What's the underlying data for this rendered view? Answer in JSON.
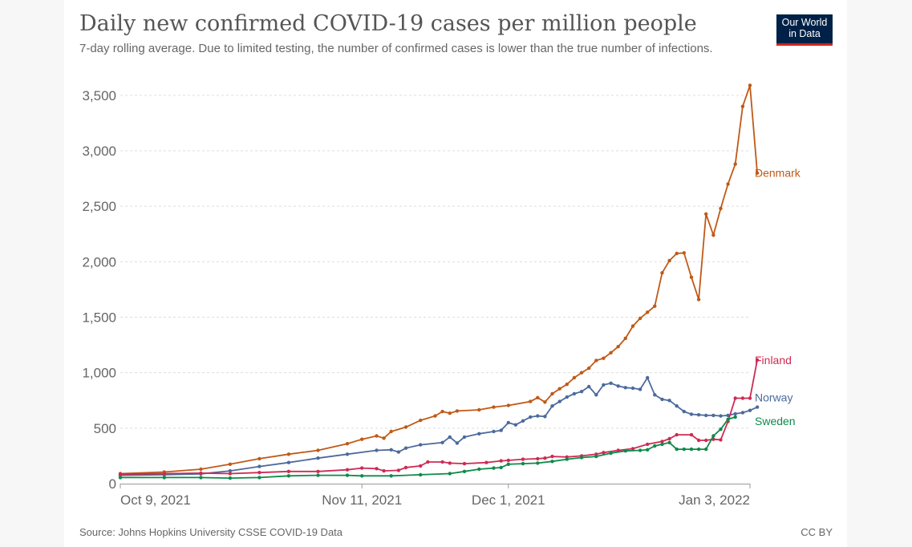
{
  "header": {
    "title": "Daily new confirmed COVID-19 cases per million people",
    "subtitle": "7-day rolling average. Due to limited testing, the number of confirmed cases is lower than the true number of infections.",
    "logo_line1": "Our World",
    "logo_line2": "in Data"
  },
  "footer": {
    "source": "Source: Johns Hopkins University CSSE COVID-19 Data",
    "license": "CC BY"
  },
  "chart_data": {
    "type": "line",
    "title": "Daily new confirmed COVID-19 cases per million people",
    "subtitle": "7-day rolling average. Due to limited testing, the number of confirmed cases is lower than the true number of infections.",
    "xlabel": "",
    "ylabel": "",
    "x_start": "2021-10-09",
    "x_end": "2022-01-03",
    "x_ticks": [
      {
        "date": "2021-10-09",
        "label": "Oct 9, 2021"
      },
      {
        "date": "2021-11-11",
        "label": "Nov 11, 2021"
      },
      {
        "date": "2021-12-01",
        "label": "Dec 1, 2021"
      },
      {
        "date": "2022-01-03",
        "label": "Jan 3, 2022"
      }
    ],
    "ylim": [
      0,
      3600
    ],
    "y_ticks": [
      {
        "value": 0,
        "label": "0"
      },
      {
        "value": 500,
        "label": "500"
      },
      {
        "value": 1000,
        "label": "1,000"
      },
      {
        "value": 1500,
        "label": "1,500"
      },
      {
        "value": 2000,
        "label": "2,000"
      },
      {
        "value": 2500,
        "label": "2,500"
      },
      {
        "value": 3000,
        "label": "3,000"
      },
      {
        "value": 3500,
        "label": "3,500"
      }
    ],
    "grid": "horizontal dashed",
    "legend": "labels at line ends (right)",
    "series": [
      {
        "name": "Denmark",
        "color": "#c05917",
        "points": [
          [
            "2021-10-09",
            90
          ],
          [
            "2021-10-15",
            105
          ],
          [
            "2021-10-20",
            130
          ],
          [
            "2021-10-24",
            175
          ],
          [
            "2021-10-28",
            225
          ],
          [
            "2021-11-01",
            265
          ],
          [
            "2021-11-05",
            300
          ],
          [
            "2021-11-09",
            360
          ],
          [
            "2021-11-11",
            400
          ],
          [
            "2021-11-13",
            430
          ],
          [
            "2021-11-14",
            410
          ],
          [
            "2021-11-15",
            470
          ],
          [
            "2021-11-17",
            510
          ],
          [
            "2021-11-19",
            570
          ],
          [
            "2021-11-21",
            610
          ],
          [
            "2021-11-22",
            650
          ],
          [
            "2021-11-23",
            635
          ],
          [
            "2021-11-24",
            655
          ],
          [
            "2021-11-27",
            665
          ],
          [
            "2021-11-29",
            690
          ],
          [
            "2021-12-01",
            705
          ],
          [
            "2021-12-04",
            740
          ],
          [
            "2021-12-05",
            775
          ],
          [
            "2021-12-06",
            735
          ],
          [
            "2021-12-07",
            810
          ],
          [
            "2021-12-08",
            855
          ],
          [
            "2021-12-09",
            895
          ],
          [
            "2021-12-10",
            955
          ],
          [
            "2021-12-11",
            1000
          ],
          [
            "2021-12-12",
            1040
          ],
          [
            "2021-12-13",
            1110
          ],
          [
            "2021-12-14",
            1130
          ],
          [
            "2021-12-15",
            1180
          ],
          [
            "2021-12-16",
            1235
          ],
          [
            "2021-12-17",
            1310
          ],
          [
            "2021-12-18",
            1420
          ],
          [
            "2021-12-19",
            1490
          ],
          [
            "2021-12-20",
            1545
          ],
          [
            "2021-12-21",
            1600
          ],
          [
            "2021-12-22",
            1900
          ],
          [
            "2021-12-23",
            2010
          ],
          [
            "2021-12-24",
            2075
          ],
          [
            "2021-12-25",
            2080
          ],
          [
            "2021-12-26",
            1860
          ],
          [
            "2021-12-27",
            1660
          ],
          [
            "2021-12-28",
            2430
          ],
          [
            "2021-12-29",
            2240
          ],
          [
            "2021-12-30",
            2480
          ],
          [
            "2021-12-31",
            2700
          ],
          [
            "2022-01-01",
            2880
          ],
          [
            "2022-01-02",
            3400
          ],
          [
            "2022-01-03",
            3590
          ],
          [
            "2022-01-04",
            2800
          ]
        ]
      },
      {
        "name": "Norway",
        "color": "#4c6a9c",
        "points": [
          [
            "2021-10-09",
            75
          ],
          [
            "2021-10-15",
            80
          ],
          [
            "2021-10-20",
            88
          ],
          [
            "2021-10-24",
            115
          ],
          [
            "2021-10-28",
            155
          ],
          [
            "2021-11-01",
            190
          ],
          [
            "2021-11-05",
            230
          ],
          [
            "2021-11-09",
            265
          ],
          [
            "2021-11-13",
            300
          ],
          [
            "2021-11-15",
            305
          ],
          [
            "2021-11-16",
            285
          ],
          [
            "2021-11-17",
            320
          ],
          [
            "2021-11-19",
            350
          ],
          [
            "2021-11-22",
            370
          ],
          [
            "2021-11-23",
            420
          ],
          [
            "2021-11-24",
            365
          ],
          [
            "2021-11-25",
            420
          ],
          [
            "2021-11-27",
            450
          ],
          [
            "2021-11-29",
            470
          ],
          [
            "2021-11-30",
            480
          ],
          [
            "2021-12-01",
            550
          ],
          [
            "2021-12-02",
            530
          ],
          [
            "2021-12-03",
            565
          ],
          [
            "2021-12-04",
            600
          ],
          [
            "2021-12-05",
            610
          ],
          [
            "2021-12-06",
            605
          ],
          [
            "2021-12-07",
            700
          ],
          [
            "2021-12-08",
            740
          ],
          [
            "2021-12-09",
            780
          ],
          [
            "2021-12-10",
            810
          ],
          [
            "2021-12-11",
            830
          ],
          [
            "2021-12-12",
            875
          ],
          [
            "2021-12-13",
            800
          ],
          [
            "2021-12-14",
            890
          ],
          [
            "2021-12-15",
            905
          ],
          [
            "2021-12-16",
            880
          ],
          [
            "2021-12-17",
            865
          ],
          [
            "2021-12-18",
            860
          ],
          [
            "2021-12-19",
            850
          ],
          [
            "2021-12-20",
            955
          ],
          [
            "2021-12-21",
            800
          ],
          [
            "2021-12-22",
            760
          ],
          [
            "2021-12-23",
            750
          ],
          [
            "2021-12-24",
            700
          ],
          [
            "2021-12-25",
            650
          ],
          [
            "2021-12-26",
            625
          ],
          [
            "2021-12-27",
            620
          ],
          [
            "2021-12-28",
            615
          ],
          [
            "2021-12-29",
            615
          ],
          [
            "2021-12-30",
            610
          ],
          [
            "2021-12-31",
            615
          ],
          [
            "2022-01-01",
            630
          ],
          [
            "2022-01-02",
            640
          ],
          [
            "2022-01-03",
            660
          ],
          [
            "2022-01-04",
            690
          ]
        ]
      },
      {
        "name": "Finland",
        "color": "#cf2a54",
        "points": [
          [
            "2021-10-09",
            85
          ],
          [
            "2021-10-15",
            90
          ],
          [
            "2021-10-20",
            95
          ],
          [
            "2021-10-24",
            90
          ],
          [
            "2021-10-28",
            100
          ],
          [
            "2021-11-01",
            110
          ],
          [
            "2021-11-05",
            110
          ],
          [
            "2021-11-09",
            125
          ],
          [
            "2021-11-11",
            140
          ],
          [
            "2021-11-13",
            135
          ],
          [
            "2021-11-14",
            115
          ],
          [
            "2021-11-16",
            120
          ],
          [
            "2021-11-17",
            145
          ],
          [
            "2021-11-19",
            160
          ],
          [
            "2021-11-20",
            195
          ],
          [
            "2021-11-22",
            195
          ],
          [
            "2021-11-23",
            185
          ],
          [
            "2021-11-25",
            180
          ],
          [
            "2021-11-28",
            190
          ],
          [
            "2021-11-30",
            205
          ],
          [
            "2021-12-01",
            210
          ],
          [
            "2021-12-03",
            220
          ],
          [
            "2021-12-05",
            225
          ],
          [
            "2021-12-06",
            230
          ],
          [
            "2021-12-07",
            245
          ],
          [
            "2021-12-09",
            240
          ],
          [
            "2021-12-11",
            250
          ],
          [
            "2021-12-13",
            265
          ],
          [
            "2021-12-14",
            280
          ],
          [
            "2021-12-16",
            300
          ],
          [
            "2021-12-18",
            315
          ],
          [
            "2021-12-20",
            355
          ],
          [
            "2021-12-22",
            380
          ],
          [
            "2021-12-23",
            405
          ],
          [
            "2021-12-24",
            440
          ],
          [
            "2021-12-26",
            440
          ],
          [
            "2021-12-27",
            390
          ],
          [
            "2021-12-28",
            390
          ],
          [
            "2021-12-29",
            400
          ],
          [
            "2021-12-30",
            395
          ],
          [
            "2021-12-31",
            560
          ],
          [
            "2022-01-01",
            770
          ],
          [
            "2022-01-02",
            770
          ],
          [
            "2022-01-03",
            770
          ],
          [
            "2022-01-04",
            1115
          ]
        ]
      },
      {
        "name": "Sweden",
        "color": "#0e8a4a",
        "points": [
          [
            "2021-10-09",
            55
          ],
          [
            "2021-10-15",
            55
          ],
          [
            "2021-10-20",
            55
          ],
          [
            "2021-10-24",
            50
          ],
          [
            "2021-10-28",
            55
          ],
          [
            "2021-11-01",
            70
          ],
          [
            "2021-11-05",
            75
          ],
          [
            "2021-11-09",
            75
          ],
          [
            "2021-11-11",
            70
          ],
          [
            "2021-11-15",
            70
          ],
          [
            "2021-11-19",
            80
          ],
          [
            "2021-11-23",
            90
          ],
          [
            "2021-11-25",
            110
          ],
          [
            "2021-11-27",
            130
          ],
          [
            "2021-11-29",
            140
          ],
          [
            "2021-11-30",
            145
          ],
          [
            "2021-12-01",
            175
          ],
          [
            "2021-12-03",
            180
          ],
          [
            "2021-12-05",
            185
          ],
          [
            "2021-12-07",
            200
          ],
          [
            "2021-12-09",
            220
          ],
          [
            "2021-12-11",
            235
          ],
          [
            "2021-12-13",
            245
          ],
          [
            "2021-12-15",
            275
          ],
          [
            "2021-12-17",
            295
          ],
          [
            "2021-12-19",
            300
          ],
          [
            "2021-12-20",
            305
          ],
          [
            "2021-12-21",
            340
          ],
          [
            "2021-12-22",
            355
          ],
          [
            "2021-12-23",
            370
          ],
          [
            "2021-12-24",
            310
          ],
          [
            "2021-12-25",
            310
          ],
          [
            "2021-12-26",
            310
          ],
          [
            "2021-12-27",
            310
          ],
          [
            "2021-12-28",
            310
          ],
          [
            "2021-12-29",
            430
          ],
          [
            "2021-12-30",
            490
          ],
          [
            "2021-12-31",
            580
          ],
          [
            "2022-01-01",
            600
          ]
        ]
      }
    ]
  }
}
